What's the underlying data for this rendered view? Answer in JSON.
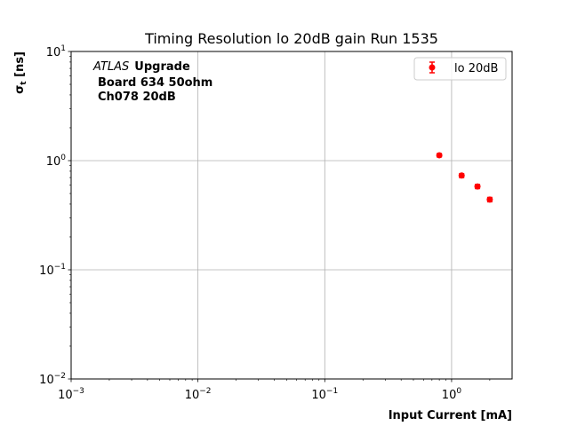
{
  "chart_data": {
    "type": "scatter",
    "title": "Timing Resolution lo 20dB gain Run 1535",
    "xlabel": "Input Current [mA]",
    "ylabel": "σ",
    "ylabel_sub": "t",
    "ylabel_unit": " [ns]",
    "xscale": "log",
    "yscale": "log",
    "xlim": [
      0.001,
      3.0
    ],
    "ylim": [
      0.01,
      10
    ],
    "grid": true,
    "legend": "top-right",
    "x_ticks": [
      {
        "value": 0.001,
        "base": "10",
        "exp": "−3"
      },
      {
        "value": 0.01,
        "base": "10",
        "exp": "−2"
      },
      {
        "value": 0.1,
        "base": "10",
        "exp": "−1"
      },
      {
        "value": 1,
        "base": "10",
        "exp": "0"
      }
    ],
    "y_ticks": [
      {
        "value": 0.01,
        "base": "10",
        "exp": "−2"
      },
      {
        "value": 0.1,
        "base": "10",
        "exp": "−1"
      },
      {
        "value": 1,
        "base": "10",
        "exp": "0"
      },
      {
        "value": 10,
        "base": "10",
        "exp": "1"
      }
    ],
    "annotation": {
      "atlas": "ATLAS",
      "upgrade": "Upgrade",
      "board": "Board 634 50ohm",
      "channel": "Ch078 20dB"
    },
    "series": [
      {
        "name": "lo 20dB",
        "color": "#ff0000",
        "x": [
          0.8,
          1.2,
          1.6,
          2.0
        ],
        "y": [
          1.12,
          0.73,
          0.58,
          0.44
        ],
        "yerr": [
          0.04,
          0.03,
          0.025,
          0.02
        ]
      }
    ]
  }
}
